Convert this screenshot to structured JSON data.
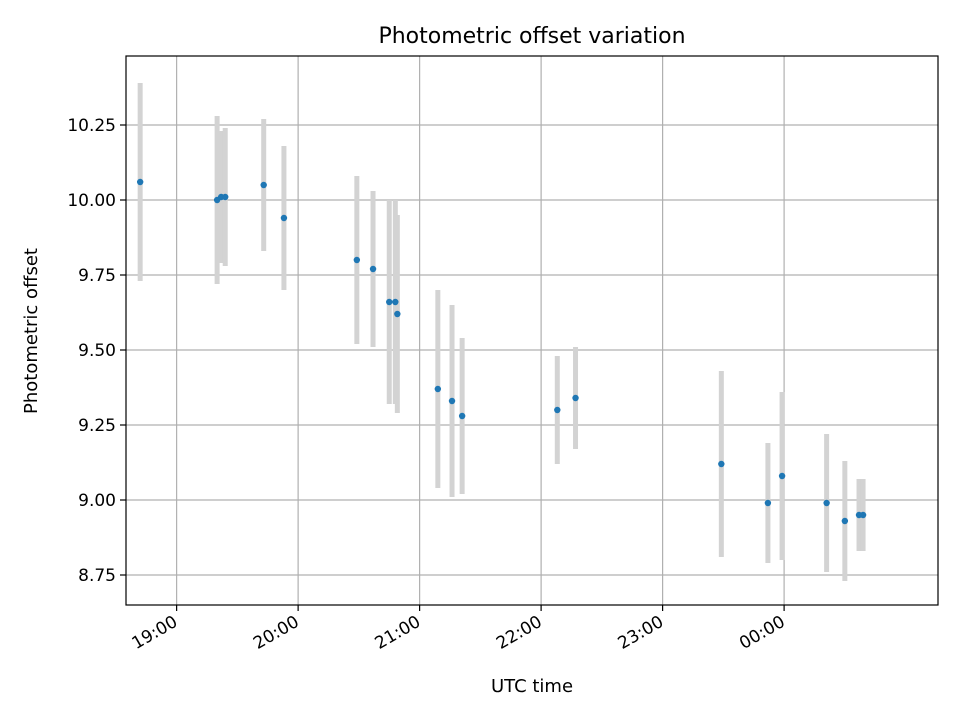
{
  "chart_data": {
    "type": "scatter",
    "title": "Photometric offset variation",
    "xlabel": "UTC time",
    "ylabel": "Photometric offset",
    "x_tick_labels": [
      "19:00",
      "20:00",
      "21:00",
      "22:00",
      "23:00",
      "00:00"
    ],
    "y_tick_labels": [
      "8.75",
      "9.00",
      "9.25",
      "9.50",
      "9.75",
      "10.00",
      "10.25"
    ],
    "y_ticks": [
      8.75,
      9.0,
      9.25,
      9.5,
      9.75,
      10.0,
      10.25
    ],
    "ylim": [
      8.65,
      10.48
    ],
    "xlim": [
      "18:35",
      "01:16"
    ],
    "grid": true,
    "marker_color": "#1f77b4",
    "errorbar_color": "#d3d3d3",
    "points": [
      {
        "time": "18:42",
        "y": 10.06,
        "err": 0.33
      },
      {
        "time": "19:20",
        "y": 10.0,
        "err": 0.28
      },
      {
        "time": "19:22",
        "y": 10.01,
        "err": 0.22
      },
      {
        "time": "19:24",
        "y": 10.01,
        "err": 0.23
      },
      {
        "time": "19:43",
        "y": 10.05,
        "err": 0.22
      },
      {
        "time": "19:53",
        "y": 9.94,
        "err": 0.24
      },
      {
        "time": "20:29",
        "y": 9.8,
        "err": 0.28
      },
      {
        "time": "20:37",
        "y": 9.77,
        "err": 0.26
      },
      {
        "time": "20:45",
        "y": 9.66,
        "err": 0.34
      },
      {
        "time": "20:48",
        "y": 9.66,
        "err": 0.34
      },
      {
        "time": "20:49",
        "y": 9.62,
        "err": 0.33
      },
      {
        "time": "21:09",
        "y": 9.37,
        "err": 0.33
      },
      {
        "time": "21:16",
        "y": 9.33,
        "err": 0.32
      },
      {
        "time": "21:21",
        "y": 9.28,
        "err": 0.26
      },
      {
        "time": "22:08",
        "y": 9.3,
        "err": 0.18
      },
      {
        "time": "22:17",
        "y": 9.34,
        "err": 0.17
      },
      {
        "time": "23:29",
        "y": 9.12,
        "err": 0.31
      },
      {
        "time": "23:52",
        "y": 8.99,
        "err": 0.2
      },
      {
        "time": "23:59",
        "y": 9.08,
        "err": 0.28
      },
      {
        "time": "00:21",
        "y": 8.99,
        "err": 0.23
      },
      {
        "time": "00:30",
        "y": 8.93,
        "err": 0.2
      },
      {
        "time": "00:37",
        "y": 8.95,
        "err": 0.12
      },
      {
        "time": "00:39",
        "y": 8.95,
        "err": 0.12
      }
    ]
  }
}
